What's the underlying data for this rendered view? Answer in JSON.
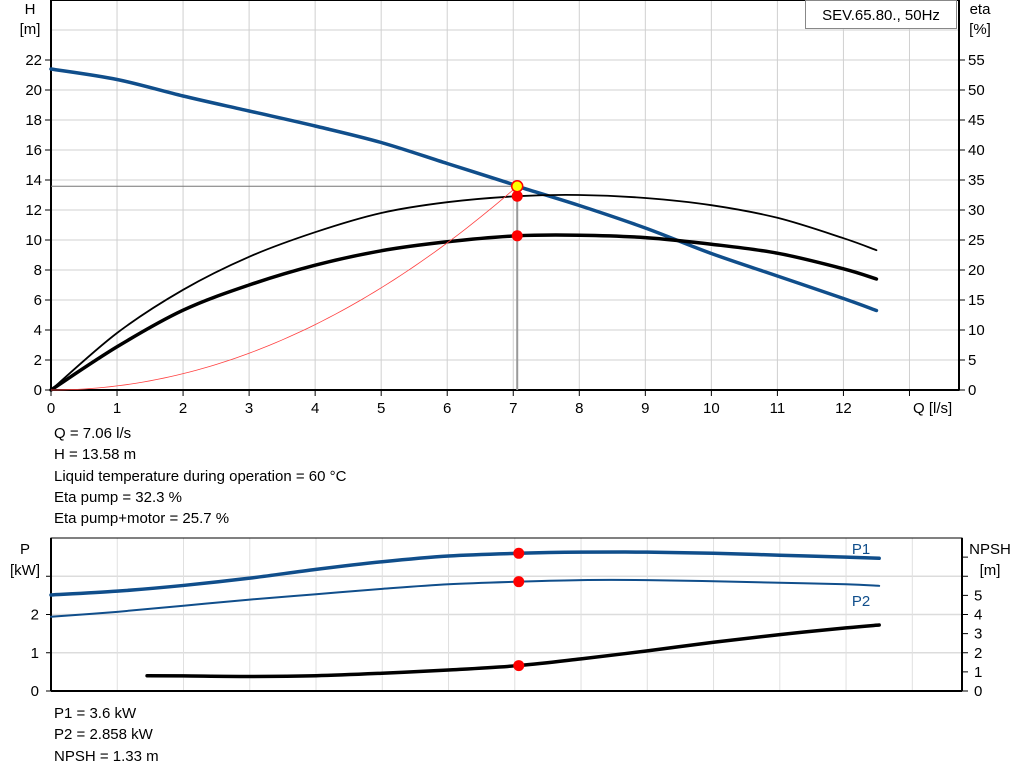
{
  "colors": {
    "head": "#104e8b",
    "eta": "#000000",
    "system": "#ff4040",
    "point": "#ff0000",
    "duty_point_fill": "#ffff00",
    "grid": "#d0d0d0",
    "power": "#104e8b"
  },
  "chart_data": [
    {
      "type": "line",
      "title": "SEV.65.80., 50Hz",
      "xlabel": "Q [l/s]",
      "ylabel_left": [
        "H",
        "[m]"
      ],
      "ylabel_right": [
        "eta",
        "[%]"
      ],
      "xlim": [
        0,
        13.75
      ],
      "ylim_left": [
        0,
        26
      ],
      "ylim_right": [
        0,
        65
      ],
      "x_ticks": [
        "0",
        "1",
        "2",
        "3",
        "4",
        "5",
        "6",
        "7",
        "8",
        "9",
        "10",
        "11",
        "12"
      ],
      "y_ticks_left": [
        "0",
        "2",
        "4",
        "6",
        "8",
        "10",
        "12",
        "14",
        "16",
        "18",
        "20",
        "22"
      ],
      "y_ticks_right": [
        "0",
        "5",
        "10",
        "15",
        "20",
        "25",
        "30",
        "35",
        "40",
        "45",
        "50",
        "55"
      ],
      "grid": true,
      "series": [
        {
          "key": "H",
          "axis": "left",
          "x": [
            0,
            1,
            2,
            3,
            4,
            5,
            6,
            7,
            7.06,
            8,
            9,
            10,
            11,
            12,
            12.5
          ],
          "y": [
            21.4,
            20.7,
            19.6,
            18.6,
            17.6,
            16.5,
            15.1,
            13.7,
            13.58,
            12.3,
            10.8,
            9.1,
            7.6,
            6.1,
            5.3
          ]
        },
        {
          "key": "eta_pump",
          "axis": "right",
          "x": [
            0,
            1,
            2,
            3,
            4,
            5,
            6,
            7.06,
            8,
            9,
            10,
            11,
            12,
            12.5
          ],
          "y": [
            0,
            9.5,
            16.7,
            22.2,
            26.3,
            29.5,
            31.3,
            32.3,
            32.5,
            32.0,
            30.8,
            28.7,
            25.3,
            23.3
          ]
        },
        {
          "key": "eta_pump_motor",
          "axis": "right",
          "x": [
            0,
            1,
            2,
            3,
            4,
            5,
            6,
            7.06,
            8,
            9,
            10,
            11,
            12,
            12.5
          ],
          "y": [
            0,
            7.2,
            13.3,
            17.5,
            20.8,
            23.2,
            24.7,
            25.7,
            25.8,
            25.4,
            24.3,
            22.8,
            20.2,
            18.5
          ]
        },
        {
          "key": "system",
          "axis": "left",
          "x": [
            0,
            1,
            2,
            3,
            4,
            5,
            6,
            7.06
          ],
          "y": [
            0,
            0.27,
            1.09,
            2.45,
            4.36,
            6.81,
            9.81,
            13.58
          ]
        }
      ],
      "duty_point": {
        "Q": 7.06,
        "H": 13.58,
        "eta_pump": 32.3,
        "eta_pump_motor": 25.7
      }
    },
    {
      "type": "line",
      "ylabel_left": [
        "P",
        "[kW]"
      ],
      "ylabel_right": [
        "NPSH",
        "[m]"
      ],
      "xlim": [
        0,
        13.75
      ],
      "ylim_left": [
        0,
        4
      ],
      "ylim_right": [
        0,
        8
      ],
      "y_ticks_left": [
        "0",
        "1",
        "2"
      ],
      "y_ticks_right": [
        "0",
        "1",
        "2",
        "3",
        "4",
        "5"
      ],
      "grid": true,
      "series": [
        {
          "name": "P1",
          "axis": "left",
          "x": [
            0,
            1,
            2,
            3,
            4,
            5,
            6,
            7.06,
            8,
            9,
            10,
            11,
            12,
            12.5
          ],
          "y": [
            2.51,
            2.61,
            2.76,
            2.95,
            3.18,
            3.38,
            3.53,
            3.6,
            3.63,
            3.63,
            3.6,
            3.55,
            3.5,
            3.47
          ]
        },
        {
          "name": "P2",
          "axis": "left",
          "x": [
            0,
            1,
            2,
            3,
            4,
            5,
            6,
            7.06,
            8,
            9,
            10,
            11,
            12,
            12.5
          ],
          "y": [
            1.94,
            2.07,
            2.23,
            2.39,
            2.53,
            2.67,
            2.79,
            2.858,
            2.9,
            2.9,
            2.87,
            2.83,
            2.79,
            2.75
          ]
        },
        {
          "key": "NPSH",
          "axis": "right",
          "x": [
            1.45,
            2,
            3,
            4,
            5,
            6,
            7.06,
            8,
            9,
            10,
            11,
            12,
            12.5
          ],
          "y": [
            0.8,
            0.79,
            0.76,
            0.8,
            0.93,
            1.1,
            1.33,
            1.68,
            2.1,
            2.55,
            2.95,
            3.3,
            3.45
          ]
        }
      ],
      "duty_point": {
        "Q": 7.06,
        "P1": 3.6,
        "P2": 2.858,
        "NPSH": 1.33
      }
    }
  ],
  "info_top": [
    "Q = 7.06 l/s",
    "H = 13.58 m",
    "Liquid temperature during operation = 60 °C",
    "Eta pump = 32.3 %",
    "Eta pump+motor = 25.7 %"
  ],
  "info_bottom": [
    "P1 = 3.6 kW",
    "P2 = 2.858 kW",
    "NPSH = 1.33 m"
  ]
}
